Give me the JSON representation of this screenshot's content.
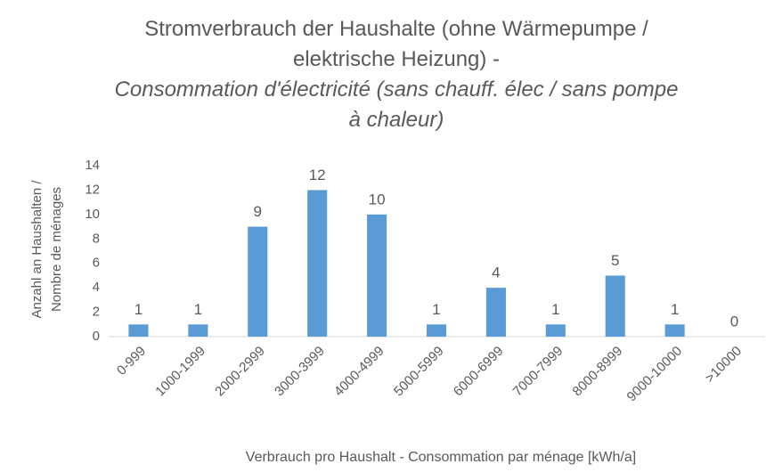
{
  "chart_data": {
    "type": "bar",
    "title": "Stromverbrauch der Haushalte (ohne Wärmepumpe / elektrische Heizung) -",
    "subtitle": "Consommation d'électricité (sans chauff. élec / sans pompe à chaleur)",
    "ylabel": [
      "Anzahl an Haushalten /",
      "Nombre de ménages"
    ],
    "xlabel": "Verbrauch pro Haushalt - Consommation par ménage [kWh/a]",
    "categories": [
      "0-999",
      "1000-1999",
      "2000-2999",
      "3000-3999",
      "4000-4999",
      "5000-5999",
      "6000-6999",
      "7000-7999",
      "8000-8999",
      "9000-10000",
      ">10000"
    ],
    "values": [
      1,
      1,
      9,
      12,
      10,
      1,
      4,
      1,
      5,
      1,
      0
    ],
    "color": "#5b9bd5",
    "ylim": [
      0,
      14
    ],
    "yticks": [
      0,
      2,
      4,
      6,
      8,
      10,
      12,
      14
    ],
    "grid": false
  }
}
